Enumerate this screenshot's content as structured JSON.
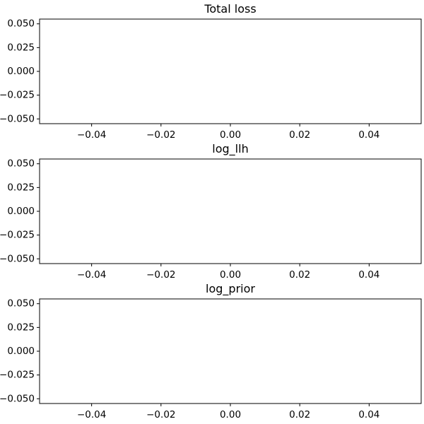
{
  "chart_data": [
    {
      "type": "line",
      "title": "Total loss",
      "xlabel": "",
      "ylabel": "",
      "xlim": [
        -0.055,
        0.055
      ],
      "ylim": [
        -0.055,
        0.055
      ],
      "xticks": [
        -0.04,
        -0.02,
        0.0,
        0.02,
        0.04
      ],
      "xtick_labels": [
        "−0.04",
        "−0.02",
        "0.00",
        "0.02",
        "0.04"
      ],
      "yticks": [
        0.05,
        0.025,
        0.0,
        -0.025,
        -0.05
      ],
      "ytick_labels": [
        "0.050",
        "0.025",
        "0.000",
        "−0.025",
        "−0.050"
      ],
      "series": [
        {
          "values": []
        }
      ],
      "grid": false
    },
    {
      "type": "line",
      "title": "log_llh",
      "xlabel": "",
      "ylabel": "",
      "xlim": [
        -0.055,
        0.055
      ],
      "ylim": [
        -0.055,
        0.055
      ],
      "xticks": [
        -0.04,
        -0.02,
        0.0,
        0.02,
        0.04
      ],
      "xtick_labels": [
        "−0.04",
        "−0.02",
        "0.00",
        "0.02",
        "0.04"
      ],
      "yticks": [
        0.05,
        0.025,
        0.0,
        -0.025,
        -0.05
      ],
      "ytick_labels": [
        "0.050",
        "0.025",
        "0.000",
        "−0.025",
        "−0.050"
      ],
      "series": [
        {
          "values": []
        }
      ],
      "grid": false
    },
    {
      "type": "line",
      "title": "log_prior",
      "xlabel": "",
      "ylabel": "",
      "xlim": [
        -0.055,
        0.055
      ],
      "ylim": [
        -0.055,
        0.055
      ],
      "xticks": [
        -0.04,
        -0.02,
        0.0,
        0.02,
        0.04
      ],
      "xtick_labels": [
        "−0.04",
        "−0.02",
        "0.00",
        "0.02",
        "0.04"
      ],
      "yticks": [
        0.05,
        0.025,
        0.0,
        -0.025,
        -0.05
      ],
      "ytick_labels": [
        "0.050",
        "0.025",
        "0.000",
        "−0.025",
        "−0.050"
      ],
      "series": [
        {
          "values": []
        }
      ],
      "grid": false
    }
  ]
}
